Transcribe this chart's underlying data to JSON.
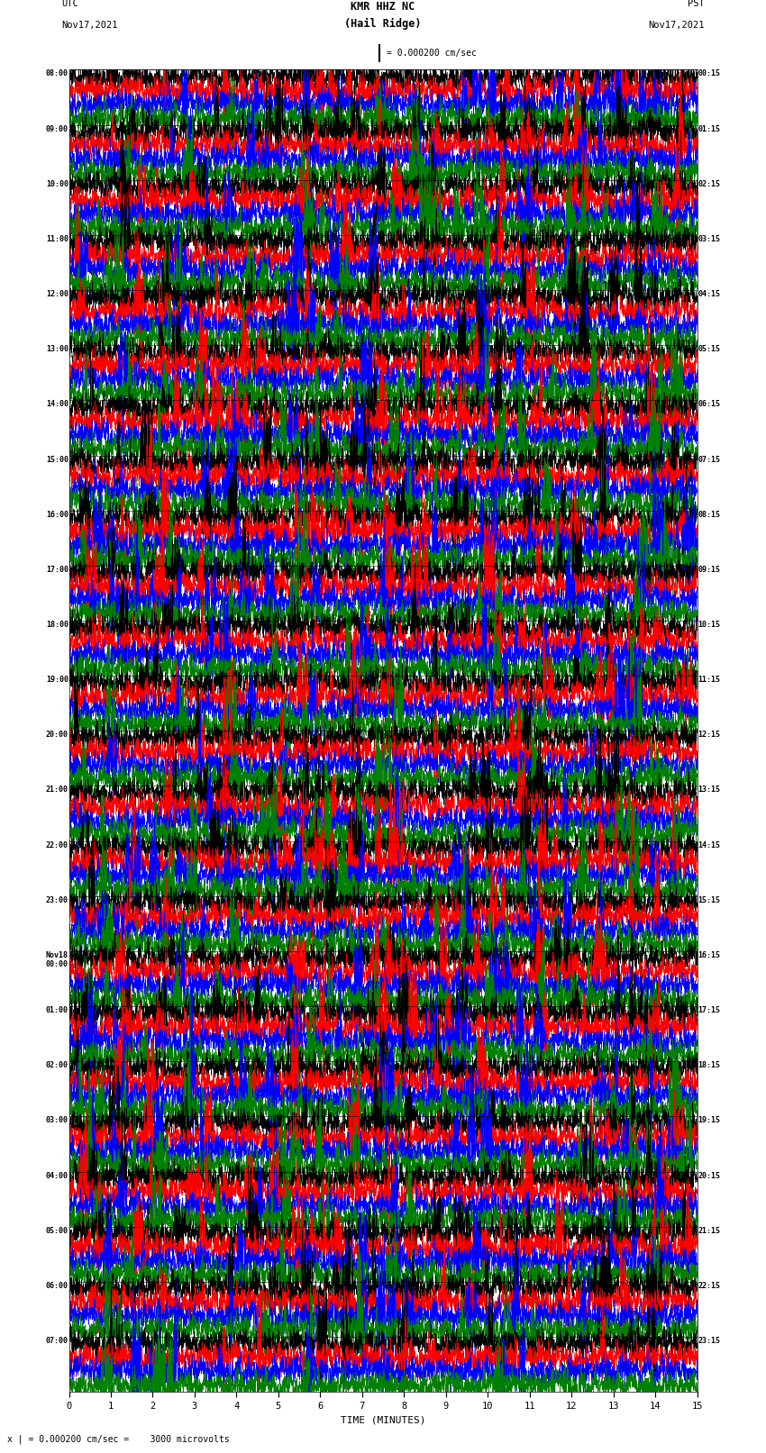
{
  "title_line1": "KMR HHZ NC",
  "title_line2": "(Hail Ridge)",
  "scale_label": "= 0.000200 cm/sec",
  "bottom_label": "x | = 0.000200 cm/sec =    3000 microvolts",
  "utc_label1": "UTC",
  "utc_label2": "Nov17,2021",
  "pst_label1": "PST",
  "pst_label2": "Nov17,2021",
  "xlabel": "TIME (MINUTES)",
  "xlim": [
    0,
    15
  ],
  "xticks": [
    0,
    1,
    2,
    3,
    4,
    5,
    6,
    7,
    8,
    9,
    10,
    11,
    12,
    13,
    14,
    15
  ],
  "left_times": [
    "08:00",
    "09:00",
    "10:00",
    "11:00",
    "12:00",
    "13:00",
    "14:00",
    "15:00",
    "16:00",
    "17:00",
    "18:00",
    "19:00",
    "20:00",
    "21:00",
    "22:00",
    "23:00",
    "Nov18\n00:00",
    "01:00",
    "02:00",
    "03:00",
    "04:00",
    "05:00",
    "06:00",
    "07:00"
  ],
  "right_times": [
    "00:15",
    "01:15",
    "02:15",
    "03:15",
    "04:15",
    "05:15",
    "06:15",
    "07:15",
    "08:15",
    "09:15",
    "10:15",
    "11:15",
    "12:15",
    "13:15",
    "14:15",
    "15:15",
    "16:15",
    "17:15",
    "18:15",
    "19:15",
    "20:15",
    "21:15",
    "22:15",
    "23:15"
  ],
  "n_rows": 24,
  "traces_per_row": 4,
  "colors": [
    "black",
    "red",
    "blue",
    "green"
  ],
  "bg_color": "white",
  "fig_width": 8.5,
  "fig_height": 16.13,
  "dpi": 100
}
